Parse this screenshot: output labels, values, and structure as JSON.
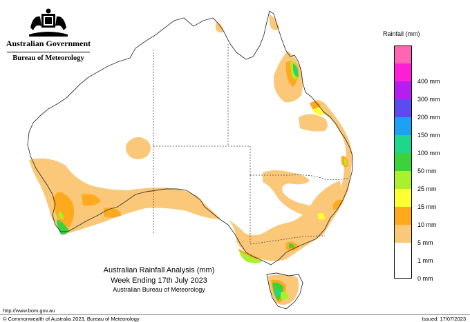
{
  "header": {
    "government": "Australian Government",
    "agency": "Bureau of Meteorology"
  },
  "legend": {
    "title": "Rainfall (mm)",
    "bins": [
      {
        "label": "",
        "color": "#ff66b2"
      },
      {
        "label": "400 mm",
        "color": "#ff1fd4"
      },
      {
        "label": "300 mm",
        "color": "#b41ff0"
      },
      {
        "label": "200 mm",
        "color": "#5a4cf0"
      },
      {
        "label": "150 mm",
        "color": "#1ea0f5"
      },
      {
        "label": "100 mm",
        "color": "#1ed68c"
      },
      {
        "label": "50 mm",
        "color": "#3cd23c"
      },
      {
        "label": "25 mm",
        "color": "#aaf02d"
      },
      {
        "label": "15 mm",
        "color": "#ffff32"
      },
      {
        "label": "10 mm",
        "color": "#ffaa1e"
      },
      {
        "label": "5 mm",
        "color": "#fac878"
      },
      {
        "label": "1 mm",
        "color": "#ffffff"
      },
      {
        "label": "0 mm",
        "color": "#ffffff"
      }
    ]
  },
  "caption": {
    "line1": "Australian Rainfall Analysis (mm)",
    "line2": "Week Ending 17th July 2023",
    "line3": "Australian Bureau of Meteorology"
  },
  "footer": {
    "url": "http://www.bom.gov.au",
    "copyright": "© Commonwealth of Australia 2023, Bureau of Meteorology",
    "issued": "Issued: 17/07/2023"
  },
  "colors": {
    "rain_1mm": "#fac878",
    "rain_5mm": "#ffaa1e",
    "rain_10mm": "#ffff32",
    "rain_15mm": "#aaf02d",
    "rain_25mm": "#3cd23c",
    "rain_50mm": "#1ed68c"
  }
}
